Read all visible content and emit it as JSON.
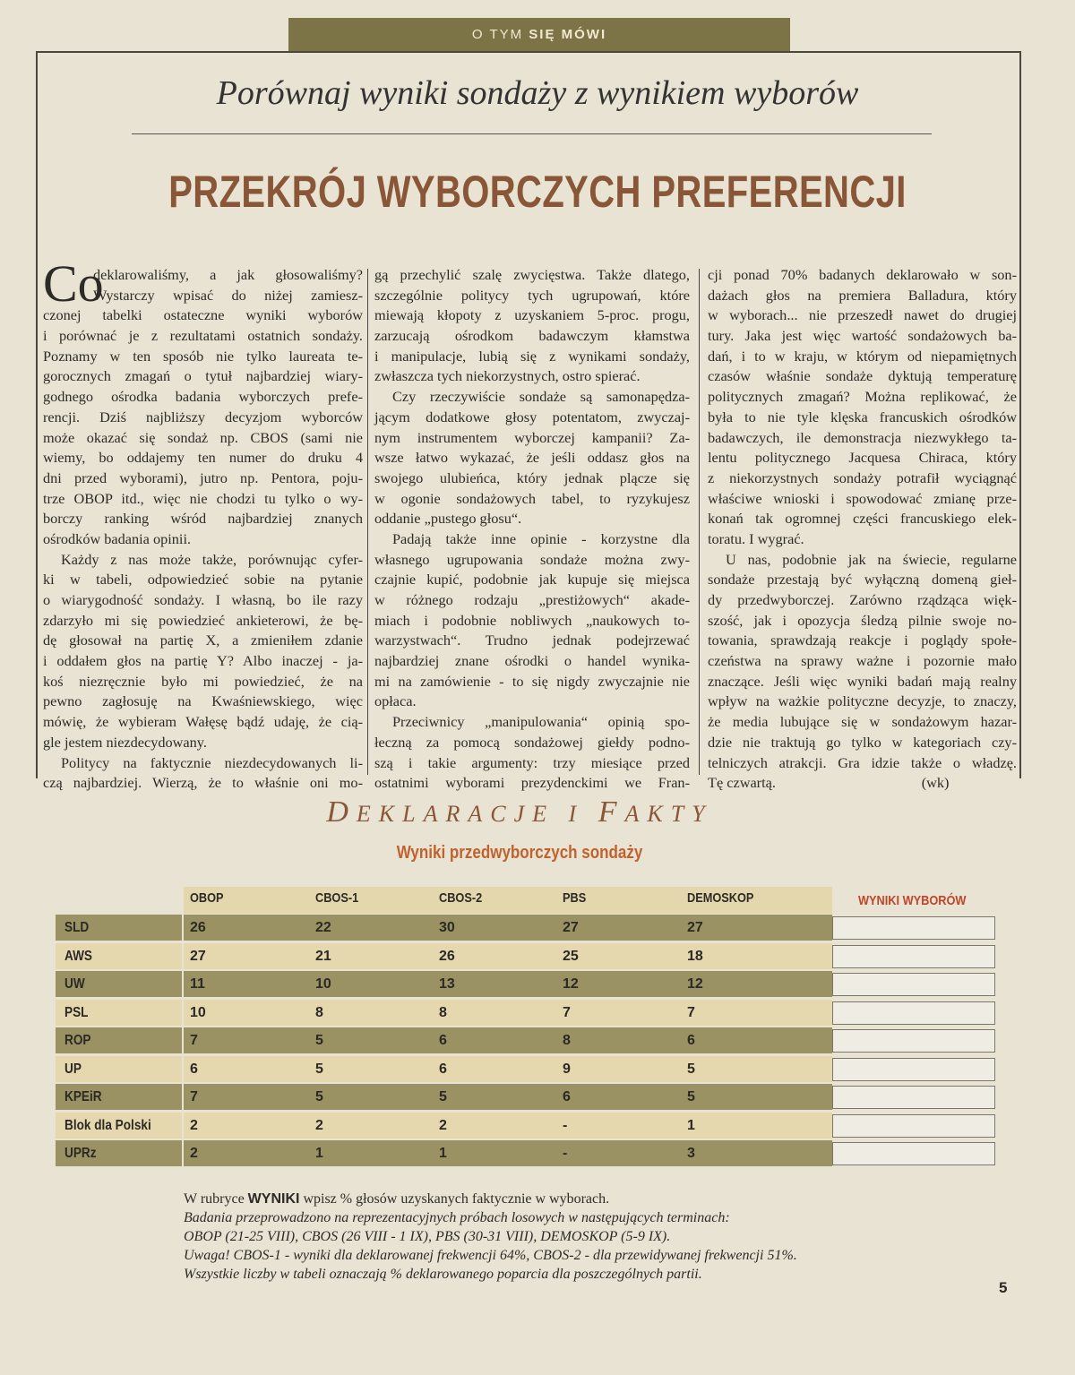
{
  "banner": {
    "part1": "O TYM",
    "part2": "SIĘ MÓWI"
  },
  "subtitle": "Porównaj wyniki sondaży z wynikiem wyborów",
  "headline": "PRZEKRÓJ WYBORCZYCH PREFERENCJI",
  "article": {
    "dropcap": "Co",
    "columns": [
      [
        {
          "t": "deklarowaliśmy, a jak głosowaliśmy?",
          "cls": "drop"
        },
        {
          "t": "Wystarczy wpisać do niżej zamiesz-",
          "cls": "drop"
        },
        {
          "t": "czonej tabelki ostateczne wyniki wyborów"
        },
        {
          "t": "i porównać je z rezultatami ostatnich sondaży."
        },
        {
          "t": "Poznamy w ten sposób nie tylko laureata te-"
        },
        {
          "t": "gorocznych zmagań o tytuł najbardziej wiary-"
        },
        {
          "t": "godnego ośrodka badania wyborczych prefe-"
        },
        {
          "t": "rencji. Dziś najbliższy decyzjom wyborców"
        },
        {
          "t": "może okazać się sondaż np. CBOS (sami nie"
        },
        {
          "t": "wiemy, bo oddajemy ten numer do druku 4"
        },
        {
          "t": "dni przed wyborami), jutro np. Pentora, poju-"
        },
        {
          "t": "trze OBOP itd., więc nie chodzi tu tylko o wy-"
        },
        {
          "t": "borczy ranking wśród najbardziej znanych"
        },
        {
          "t": "ośrodków badania opinii.",
          "cls": "last"
        },
        {
          "t": "Każdy z nas może także, porównując cyfer-",
          "cls": "indent"
        },
        {
          "t": "ki w tabeli, odpowiedzieć sobie na pytanie"
        },
        {
          "t": "o wiarygodność sondaży. I własną, bo ile razy"
        },
        {
          "t": "zdarzyło mi się powiedzieć ankieterowi, że bę-"
        },
        {
          "t": "dę głosował na partię X, a zmieniłem zdanie"
        },
        {
          "t": "i oddałem głos na partię Y? Albo inaczej - ja-"
        },
        {
          "t": "koś niezręcznie było mi powiedzieć, że na"
        },
        {
          "t": "pewno zagłosuję na Kwaśniewskiego, więc"
        },
        {
          "t": "mówię, że wybieram Wałęsę bądź udaję, że cią-"
        },
        {
          "t": "gle jestem niezdecydowany.",
          "cls": "last"
        },
        {
          "t": "Politycy na faktycznie niezdecydowanych li-",
          "cls": "indent"
        },
        {
          "t": "czą najbardziej. Wierzą, że to właśnie oni mo-"
        }
      ],
      [
        {
          "t": "gą przechylić szalę zwycięstwa. Także dlatego,"
        },
        {
          "t": "szczególnie politycy tych ugrupowań, które"
        },
        {
          "t": "miewają kłopoty z uzyskaniem 5-proc. progu,"
        },
        {
          "t": "zarzucają ośrodkom badawczym kłamstwa"
        },
        {
          "t": "i manipulacje, lubią się z wynikami sondaży,"
        },
        {
          "t": "zwłaszcza tych niekorzystnych, ostro spierać.",
          "cls": "last"
        },
        {
          "t": "Czy rzeczywiście sondaże są samonapędza-",
          "cls": "indent"
        },
        {
          "t": "jącym dodatkowe głosy potentatom, zwyczaj-"
        },
        {
          "t": "nym instrumentem wyborczej kampanii? Za-"
        },
        {
          "t": "wsze łatwo wykazać, że jeśli oddasz głos na"
        },
        {
          "t": "swojego ulubieńca, który jednak plącze się"
        },
        {
          "t": "w ogonie sondażowych tabel, to ryzykujesz"
        },
        {
          "t": "oddanie „pustego głosu“.",
          "cls": "last"
        },
        {
          "t": "Padają także inne opinie - korzystne dla",
          "cls": "indent"
        },
        {
          "t": "własnego ugrupowania sondaże można zwy-"
        },
        {
          "t": "czajnie kupić, podobnie jak kupuje się miejsca"
        },
        {
          "t": "w różnego rodzaju „prestiżowych“ akade-"
        },
        {
          "t": "miach i podobnie nobliwych „naukowych to-"
        },
        {
          "t": "warzystwach“. Trudno jednak podejrzewać"
        },
        {
          "t": "najbardziej znane ośrodki o handel wynika-"
        },
        {
          "t": "mi na zamówienie - to się nigdy zwyczajnie nie"
        },
        {
          "t": "opłaca.",
          "cls": "last"
        },
        {
          "t": "Przeciwnicy „manipulowania“ opinią spo-",
          "cls": "indent"
        },
        {
          "t": "łeczną za pomocą sondażowej giełdy podno-"
        },
        {
          "t": "szą i takie argumenty: trzy miesiące przed"
        },
        {
          "t": "ostatnimi wyborami prezydenckimi we Fran-"
        }
      ],
      [
        {
          "t": "cji ponad 70% badanych deklarowało w son-"
        },
        {
          "t": "dażach głos na premiera Balladura, który"
        },
        {
          "t": "w wyborach... nie przeszedł nawet do drugiej"
        },
        {
          "t": "tury. Jaka jest więc wartość sondażowych ba-"
        },
        {
          "t": "dań, i to w kraju, w którym od niepamiętnych"
        },
        {
          "t": "czasów właśnie sondaże dyktują temperaturę"
        },
        {
          "t": "politycznych zmagań? Można replikować, że"
        },
        {
          "t": "była to nie tyle klęska francuskich ośrodków"
        },
        {
          "t": "badawczych, ile demonstracja niezwykłego ta-"
        },
        {
          "t": "lentu politycznego Jacquesa Chiraca, który"
        },
        {
          "t": "z niekorzystnych sondaży potrafił wyciągnąć"
        },
        {
          "t": "właściwe wnioski i spowodować zmianę prze-"
        },
        {
          "t": "konań tak ogromnej części francuskiego elek-"
        },
        {
          "t": "toratu. I wygrać.",
          "cls": "last"
        },
        {
          "t": "U nas, podobnie jak na świecie, regularne",
          "cls": "indent"
        },
        {
          "t": "sondaże przestają być wyłączną domeną gieł-"
        },
        {
          "t": "dy przedwyborczej. Zarówno rządząca więk-"
        },
        {
          "t": "szość, jak i opozycja śledzą pilnie swoje no-"
        },
        {
          "t": "towania, sprawdzają reakcje i poglądy społe-"
        },
        {
          "t": "czeństwa na sprawy ważne i pozornie mało"
        },
        {
          "t": "znaczące. Jeśli więc wyniki badań mają realny"
        },
        {
          "t": "wpływ na ważkie polityczne decyzje, to znaczy,"
        },
        {
          "t": "że media lubujące się w sondażowym hazar-"
        },
        {
          "t": "dzie nie traktują go tylko w kategoriach czy-"
        },
        {
          "t": "telniczych atrakcji. Gra idzie także o władzę."
        },
        {
          "t": "Tę czwartą.                                        (wk)"
        }
      ]
    ]
  },
  "section": {
    "title_parts": [
      "D",
      "EKLARACJE ",
      "I ",
      "F",
      "AKTY"
    ],
    "subtitle": "Wyniki przedwyborczych sondaży"
  },
  "table": {
    "columns": [
      "OBOP",
      "CBOS-1",
      "CBOS-2",
      "PBS",
      "DEMOSKOP"
    ],
    "results_header": "WYNIKI WYBORÓW",
    "rows": [
      {
        "party": "SLD",
        "values": [
          "26",
          "22",
          "30",
          "27",
          "27"
        ]
      },
      {
        "party": "AWS",
        "values": [
          "27",
          "21",
          "26",
          "25",
          "18"
        ]
      },
      {
        "party": "UW",
        "values": [
          "11",
          "10",
          "13",
          "12",
          "12"
        ]
      },
      {
        "party": "PSL",
        "values": [
          "10",
          "8",
          "8",
          "7",
          "7"
        ]
      },
      {
        "party": "ROP",
        "values": [
          "7",
          "5",
          "6",
          "8",
          "6"
        ]
      },
      {
        "party": "UP",
        "values": [
          "6",
          "5",
          "6",
          "9",
          "5"
        ]
      },
      {
        "party": "KPEiR",
        "values": [
          "7",
          "5",
          "5",
          "6",
          "5"
        ]
      },
      {
        "party": "Blok dla Polski",
        "values": [
          "2",
          "2",
          "2",
          "-",
          "1"
        ]
      },
      {
        "party": "UPRz",
        "values": [
          "2",
          "1",
          "1",
          "-",
          "3"
        ]
      }
    ],
    "colors": {
      "dark_row": "#9b9263",
      "light_row": "#e6d8ae",
      "results_header": "#c0452a"
    }
  },
  "notes": {
    "line1_pre": "W rubryce ",
    "line1_bold": "WYNIKI",
    "line1_post": " wpisz % głosów uzyskanych faktycznie w wyborach.",
    "line2": "Badania przeprowadzono na reprezentacyjnych próbach losowych w następujących terminach:",
    "line3": "OBOP (21-25 VIII), CBOS (26 VIII - 1 IX), PBS (30-31 VIII), DEMOSKOP (5-9 IX).",
    "line4": "Uwaga! CBOS-1 - wyniki dla deklarowanej frekwencji 64%, CBOS-2 - dla przewidywanej frekwencji 51%.",
    "line5": "Wszystkie liczby w tabeli oznaczają % deklarowanego poparcia dla poszczególnych partii."
  },
  "page_number": "5",
  "colors": {
    "banner": "#7c7446",
    "headline": "#8a5638",
    "section_subtitle": "#c0622f"
  }
}
